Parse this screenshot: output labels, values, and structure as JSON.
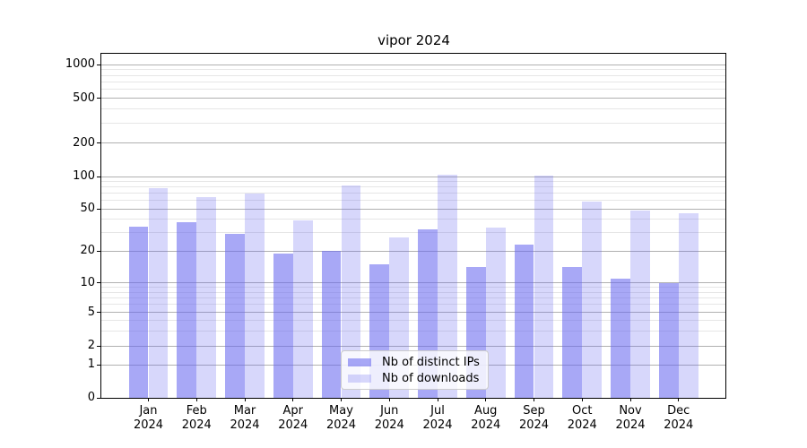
{
  "title": "vipor 2024",
  "chart_data": {
    "type": "bar",
    "title": "vipor 2024",
    "categories": [
      "Jan 2024",
      "Feb 2024",
      "Mar 2024",
      "Apr 2024",
      "May 2024",
      "Jun 2024",
      "Jul 2024",
      "Aug 2024",
      "Sep 2024",
      "Oct 2024",
      "Nov 2024",
      "Dec 2024"
    ],
    "series": [
      {
        "name": "Nb of distinct IPs",
        "values": [
          34,
          37,
          29,
          19,
          20,
          15,
          32,
          14,
          23,
          14,
          11,
          10
        ],
        "color": "rgba(102,102,240,0.57)",
        "apparent_hex": "#a8a8f6"
      },
      {
        "name": "Nb of downloads",
        "values": [
          78,
          64,
          70,
          39,
          83,
          27,
          104,
          33,
          101,
          58,
          48,
          45
        ],
        "color": "rgba(102,102,240,0.26)",
        "apparent_hex": "#d8d8fa"
      }
    ],
    "y_axis": {
      "scale": "symlog",
      "major_ticks": [
        0,
        1,
        2,
        5,
        10,
        20,
        50,
        100,
        200,
        500,
        1000
      ],
      "minor_gridlines": [
        3,
        4,
        6,
        7,
        8,
        9,
        30,
        40,
        60,
        70,
        80,
        90,
        300,
        400,
        600,
        700,
        800,
        900
      ]
    },
    "legend": {
      "position": "lower center"
    },
    "grid": true,
    "colors": {
      "major_grid": "#b0b0b0",
      "minor_grid": "#e6e6e6",
      "spine": "#000000",
      "text": "#000000"
    }
  }
}
